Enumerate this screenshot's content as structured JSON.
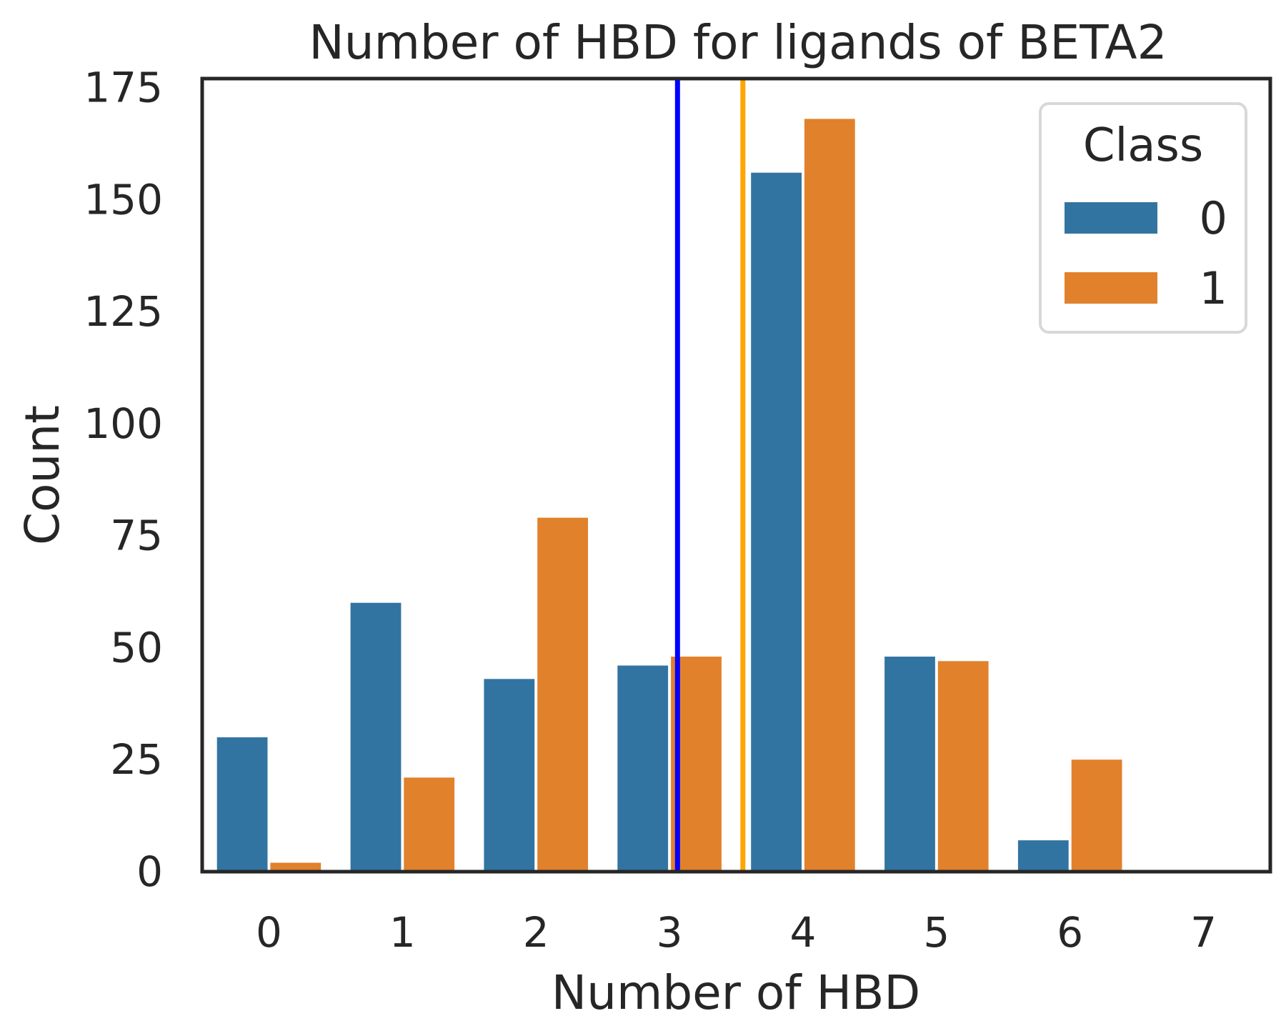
{
  "chart_data": {
    "type": "bar",
    "title": "Number of HBD for ligands of BETA2",
    "xlabel": "Number of HBD",
    "ylabel": "Count",
    "categories": [
      "0",
      "1",
      "2",
      "3",
      "4",
      "5",
      "6",
      "7"
    ],
    "series": [
      {
        "name": "0",
        "color": "#3274a1",
        "values": [
          30,
          60,
          43,
          46,
          156,
          48,
          7,
          0
        ]
      },
      {
        "name": "1",
        "color": "#e1812c",
        "values": [
          2,
          21,
          79,
          48,
          168,
          47,
          25,
          0
        ]
      }
    ],
    "yticks": [
      "0",
      "25",
      "50",
      "75",
      "100",
      "125",
      "150",
      "175"
    ],
    "ylim": [
      0,
      177
    ],
    "grid": false,
    "legend": {
      "title": "Class",
      "placement": "top-right"
    },
    "vlines": [
      {
        "x": 3.06,
        "color": "#0000ff"
      },
      {
        "x": 3.55,
        "color": "#ffa500"
      }
    ]
  }
}
